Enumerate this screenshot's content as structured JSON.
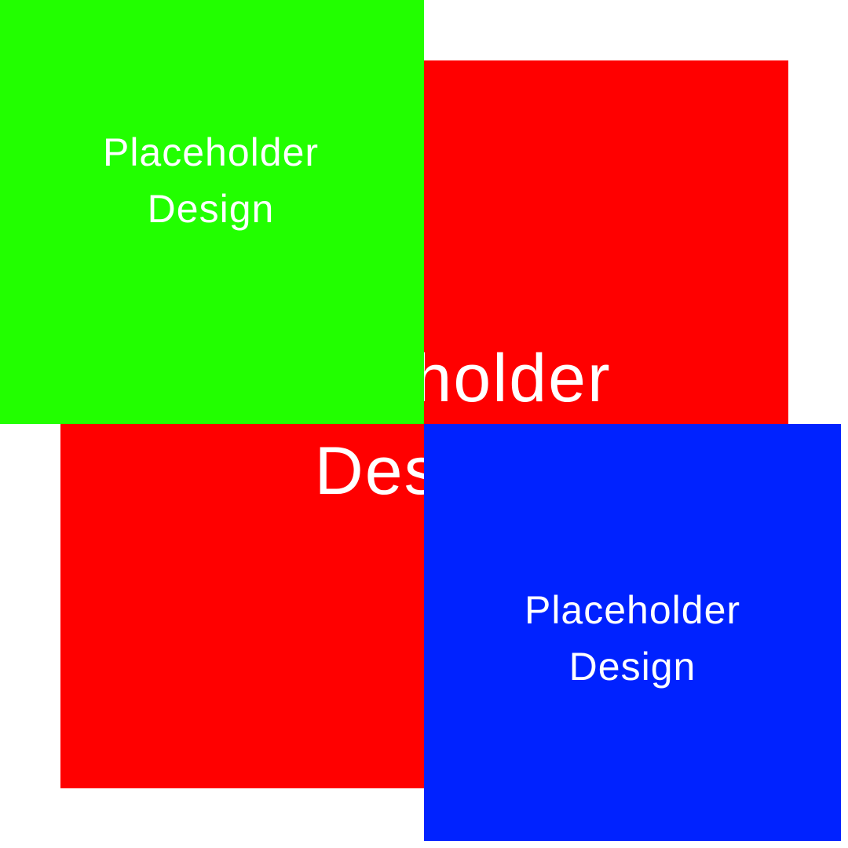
{
  "colors": {
    "background": "#ffffff",
    "red": "#ff0000",
    "green": "#22ff00",
    "blue": "#0022ff",
    "text": "#ffffff"
  },
  "center_panel": {
    "line1": "Placeholder",
    "line2": "Design"
  },
  "green_panel": {
    "line1": "Placeholder",
    "line2": "Design"
  },
  "blue_panel": {
    "line1": "Placeholder",
    "line2": "Design"
  }
}
